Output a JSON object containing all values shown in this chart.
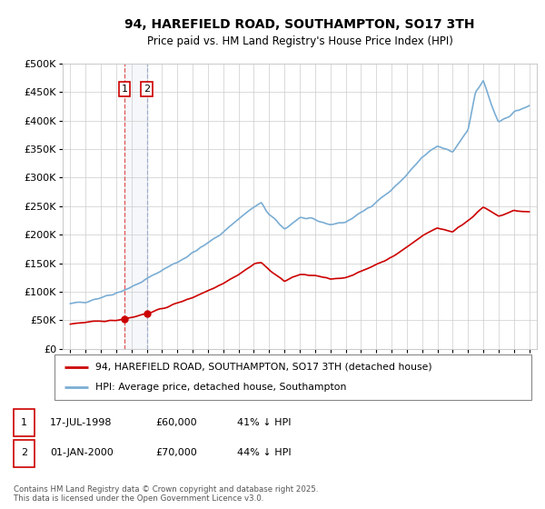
{
  "title": "94, HAREFIELD ROAD, SOUTHAMPTON, SO17 3TH",
  "subtitle": "Price paid vs. HM Land Registry's House Price Index (HPI)",
  "ylabel_ticks": [
    "£0",
    "£50K",
    "£100K",
    "£150K",
    "£200K",
    "£250K",
    "£300K",
    "£350K",
    "£400K",
    "£450K",
    "£500K"
  ],
  "ylim": [
    0,
    500000
  ],
  "ytick_vals": [
    0,
    50000,
    100000,
    150000,
    200000,
    250000,
    300000,
    350000,
    400000,
    450000,
    500000
  ],
  "sale1_x": 1998.54,
  "sale1_y": 60000,
  "sale2_x": 2000.0,
  "sale2_y": 70000,
  "legend_line1": "94, HAREFIELD ROAD, SOUTHAMPTON, SO17 3TH (detached house)",
  "legend_line2": "HPI: Average price, detached house, Southampton",
  "footnote": "Contains HM Land Registry data © Crown copyright and database right 2025.\nThis data is licensed under the Open Government Licence v3.0.",
  "line_color_red": "#cc0000",
  "line_color_blue": "#7aadd4",
  "vline_color1": "#dd4444",
  "vline_color2": "#99aacc",
  "bg_color": "#ffffff",
  "grid_color": "#cccccc",
  "xlim": [
    1994.5,
    2025.5
  ],
  "xticks": [
    1995,
    1996,
    1997,
    1998,
    1999,
    2000,
    2001,
    2002,
    2003,
    2004,
    2005,
    2006,
    2007,
    2008,
    2009,
    2010,
    2011,
    2012,
    2013,
    2014,
    2015,
    2016,
    2017,
    2018,
    2019,
    2020,
    2021,
    2022,
    2023,
    2024,
    2025
  ],
  "hpi_anchors_x": [
    1995,
    1996,
    1997,
    1998,
    1999,
    2000,
    2001,
    2002,
    2003,
    2004,
    2005,
    2006,
    2007,
    2007.5,
    2008,
    2009,
    2009.5,
    2010,
    2011,
    2012,
    2013,
    2014,
    2015,
    2016,
    2017,
    2018,
    2019,
    2020,
    2021,
    2021.5,
    2022,
    2022.5,
    2023,
    2023.5,
    2024,
    2025
  ],
  "hpi_anchors_y": [
    78000,
    83000,
    90000,
    98000,
    108000,
    122000,
    138000,
    152000,
    168000,
    185000,
    205000,
    228000,
    248000,
    255000,
    235000,
    210000,
    220000,
    230000,
    225000,
    218000,
    222000,
    238000,
    258000,
    278000,
    305000,
    335000,
    355000,
    345000,
    385000,
    450000,
    470000,
    430000,
    395000,
    405000,
    415000,
    425000
  ],
  "red_anchors_x": [
    1995,
    1996,
    1997,
    1998,
    1999,
    2000,
    2001,
    2002,
    2003,
    2004,
    2005,
    2006,
    2007,
    2007.5,
    2008,
    2009,
    2009.5,
    2010,
    2011,
    2012,
    2013,
    2014,
    2015,
    2016,
    2017,
    2018,
    2019,
    2020,
    2021,
    2022,
    2023,
    2024,
    2025
  ],
  "red_anchors_y": [
    44000,
    46000,
    48000,
    50000,
    55000,
    62000,
    70000,
    80000,
    90000,
    102000,
    115000,
    130000,
    148000,
    152000,
    138000,
    118000,
    125000,
    130000,
    128000,
    122000,
    125000,
    135000,
    148000,
    160000,
    178000,
    198000,
    212000,
    205000,
    225000,
    248000,
    232000,
    242000,
    240000
  ]
}
